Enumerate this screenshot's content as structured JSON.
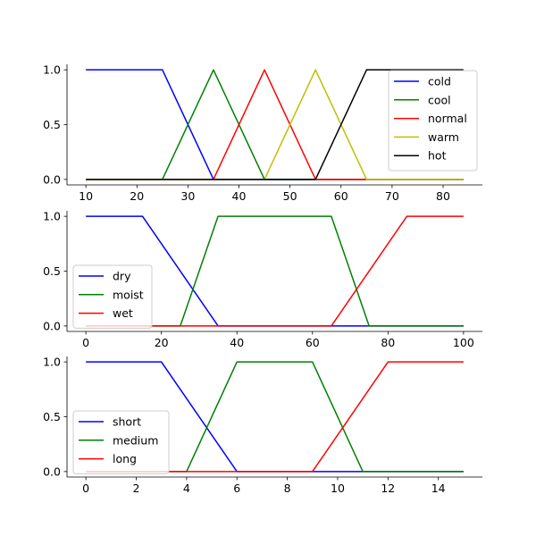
{
  "chart_data": [
    {
      "type": "line",
      "xlim": [
        6.3,
        87.7
      ],
      "ylim": [
        -0.05,
        1.05
      ],
      "xticks": [
        10,
        20,
        30,
        40,
        50,
        60,
        70,
        80
      ],
      "xtick_labels": [
        "10",
        "20",
        "30",
        "40",
        "50",
        "60",
        "70",
        "80"
      ],
      "yticks": [
        0,
        0.5,
        1
      ],
      "ytick_labels": [
        "0.0",
        "0.5",
        "1.0"
      ],
      "grid": false,
      "legend": "top-right",
      "series": [
        {
          "name": "cold",
          "color": "#0000ff",
          "x": [
            10,
            25,
            35,
            84
          ],
          "y": [
            1,
            1,
            0,
            0
          ]
        },
        {
          "name": "cool",
          "color": "#008000",
          "x": [
            10,
            25,
            35,
            45,
            84
          ],
          "y": [
            0,
            0,
            1,
            0,
            0
          ]
        },
        {
          "name": "normal",
          "color": "#ff0000",
          "x": [
            10,
            35,
            45,
            55,
            84
          ],
          "y": [
            0,
            0,
            1,
            0,
            0
          ]
        },
        {
          "name": "warm",
          "color": "#bfbf00",
          "x": [
            10,
            45,
            55,
            65,
            84
          ],
          "y": [
            0,
            0,
            1,
            0,
            0
          ]
        },
        {
          "name": "hot",
          "color": "#000000",
          "x": [
            10,
            55,
            65,
            84
          ],
          "y": [
            0,
            0,
            1,
            1
          ]
        }
      ]
    },
    {
      "type": "line",
      "xlim": [
        -5,
        105
      ],
      "ylim": [
        -0.05,
        1.05
      ],
      "xticks": [
        0,
        20,
        40,
        60,
        80,
        100
      ],
      "xtick_labels": [
        "0",
        "20",
        "40",
        "60",
        "80",
        "100"
      ],
      "yticks": [
        0,
        0.5,
        1
      ],
      "ytick_labels": [
        "0.0",
        "0.5",
        "1.0"
      ],
      "grid": false,
      "legend": "center-left",
      "series": [
        {
          "name": "dry",
          "color": "#0000ff",
          "x": [
            0,
            15,
            35,
            100
          ],
          "y": [
            1,
            1,
            0,
            0
          ]
        },
        {
          "name": "moist",
          "color": "#008000",
          "x": [
            0,
            25,
            35,
            65,
            75,
            100
          ],
          "y": [
            0,
            0,
            1,
            1,
            0,
            0
          ]
        },
        {
          "name": "wet",
          "color": "#ff0000",
          "x": [
            0,
            65,
            85,
            100
          ],
          "y": [
            0,
            0,
            1,
            1
          ]
        }
      ]
    },
    {
      "type": "line",
      "xlim": [
        -0.75,
        15.75
      ],
      "ylim": [
        -0.05,
        1.05
      ],
      "xticks": [
        0,
        2,
        4,
        6,
        8,
        10,
        12,
        14
      ],
      "xtick_labels": [
        "0",
        "2",
        "4",
        "6",
        "8",
        "10",
        "12",
        "14"
      ],
      "yticks": [
        0,
        0.5,
        1
      ],
      "ytick_labels": [
        "0.0",
        "0.5",
        "1.0"
      ],
      "grid": false,
      "legend": "lower-left",
      "series": [
        {
          "name": "short",
          "color": "#0000ff",
          "x": [
            0,
            3,
            6,
            15
          ],
          "y": [
            1,
            1,
            0,
            0
          ]
        },
        {
          "name": "medium",
          "color": "#008000",
          "x": [
            0,
            4,
            6,
            9,
            11,
            15
          ],
          "y": [
            0,
            0,
            1,
            1,
            0,
            0
          ]
        },
        {
          "name": "long",
          "color": "#ff0000",
          "x": [
            0,
            9,
            12,
            15
          ],
          "y": [
            0,
            0,
            1,
            1
          ]
        }
      ]
    }
  ]
}
